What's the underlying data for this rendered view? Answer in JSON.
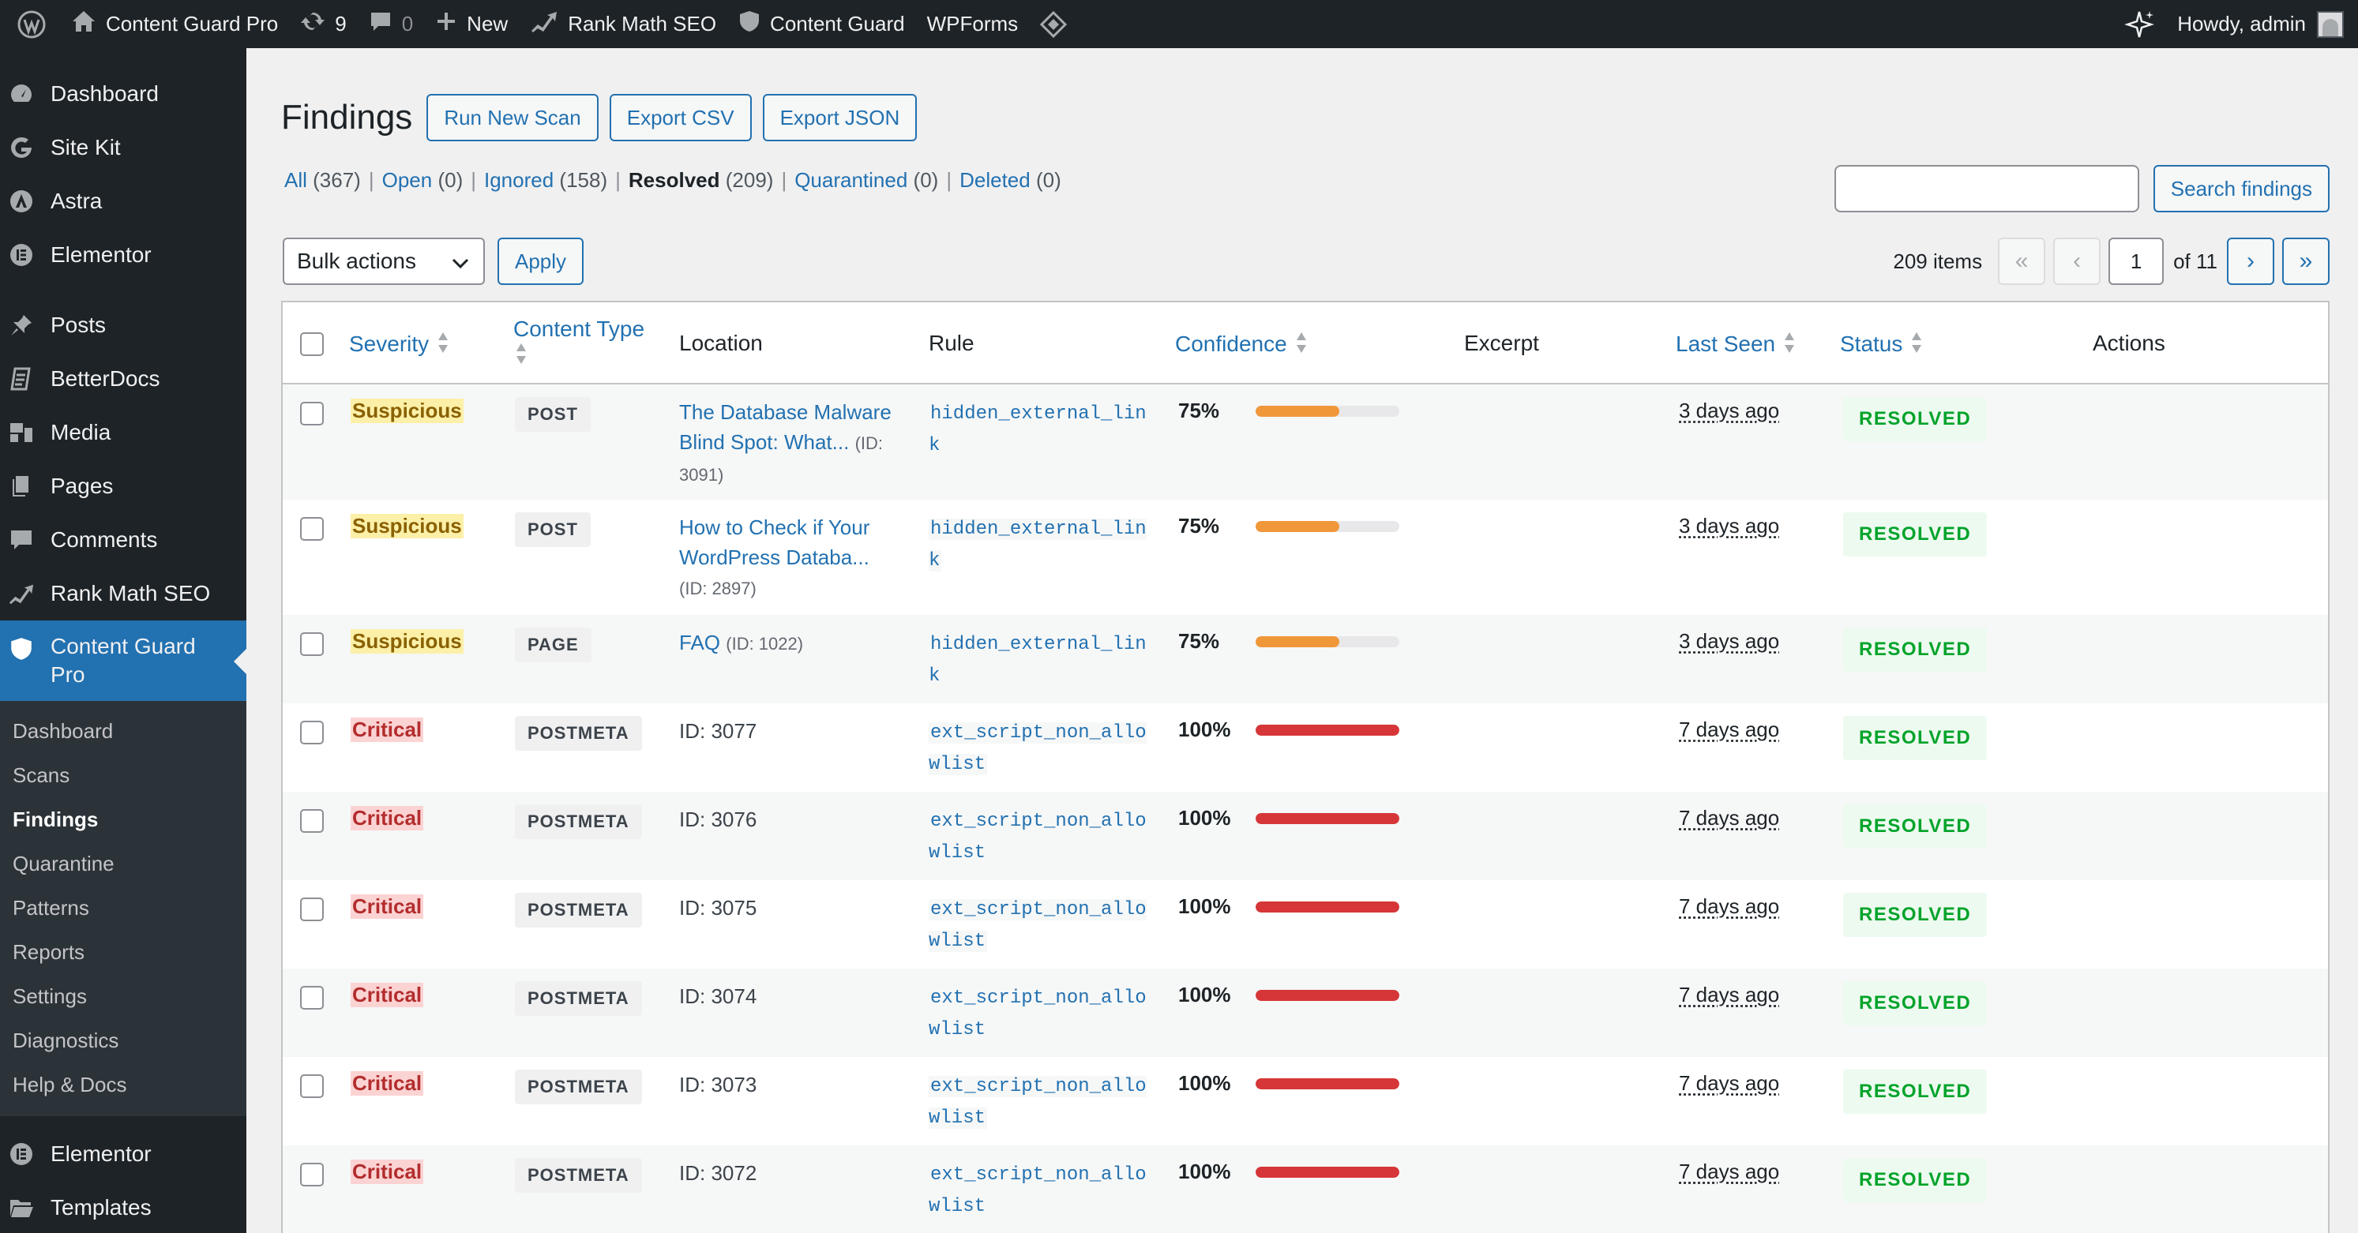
{
  "adminbar": {
    "site_name": "Content Guard Pro",
    "updates_count": "9",
    "comments_count": "0",
    "new_label": "New",
    "rankmath_label": "Rank Math SEO",
    "contentguard_label": "Content Guard",
    "wpforms_label": "WPForms",
    "howdy": "Howdy, admin"
  },
  "sidebar": {
    "items": [
      {
        "label": "Dashboard",
        "icon": "dashboard-icon"
      },
      {
        "label": "Site Kit",
        "icon": "sitekit-icon"
      },
      {
        "label": "Astra",
        "icon": "astra-icon"
      },
      {
        "label": "Elementor",
        "icon": "elementor-icon"
      },
      {
        "label": "Posts",
        "icon": "pin-icon"
      },
      {
        "label": "BetterDocs",
        "icon": "docs-icon"
      },
      {
        "label": "Media",
        "icon": "media-icon"
      },
      {
        "label": "Pages",
        "icon": "pages-icon"
      },
      {
        "label": "Comments",
        "icon": "comments-icon"
      },
      {
        "label": "Rank Math SEO",
        "icon": "rankmath-icon"
      },
      {
        "label": "Content Guard Pro",
        "icon": "shield-icon"
      }
    ],
    "submenu": [
      "Dashboard",
      "Scans",
      "Findings",
      "Quarantine",
      "Patterns",
      "Reports",
      "Settings",
      "Diagnostics",
      "Help & Docs"
    ],
    "after": [
      {
        "label": "Elementor",
        "icon": "elementor-icon"
      },
      {
        "label": "Templates",
        "icon": "folder-icon"
      }
    ]
  },
  "page": {
    "title": "Findings",
    "buttons": {
      "scan": "Run New Scan",
      "csv": "Export CSV",
      "json": "Export JSON"
    },
    "filters": [
      {
        "label": "All",
        "count": "(367)"
      },
      {
        "label": "Open",
        "count": "(0)"
      },
      {
        "label": "Ignored",
        "count": "(158)"
      },
      {
        "label": "Resolved",
        "count": "(209)"
      },
      {
        "label": "Quarantined",
        "count": "(0)"
      },
      {
        "label": "Deleted",
        "count": "(0)"
      }
    ],
    "search_button": "Search findings",
    "bulk_label": "Bulk actions",
    "apply_label": "Apply",
    "items_count": "209 items",
    "current_page": "1",
    "of_pages": "of 11",
    "pager": {
      "first": "«",
      "prev": "‹",
      "next": "›",
      "last": "»"
    }
  },
  "table": {
    "headers": {
      "severity": "Severity",
      "content_type": "Content Type",
      "location": "Location",
      "rule": "Rule",
      "confidence": "Confidence",
      "excerpt": "Excerpt",
      "last_seen": "Last Seen",
      "status": "Status",
      "actions": "Actions"
    },
    "rows": [
      {
        "severity": "Suspicious",
        "type": "POST",
        "loc_l1": "The Database Malware",
        "loc_l2": "Blind Spot: What...",
        "loc_id": "(ID:",
        "loc_id2": "3091)",
        "rule": "hidden_external_link",
        "confidence": "75%",
        "conf_value": 75,
        "last_seen": "3 days ago",
        "status": "RESOLVED"
      },
      {
        "severity": "Suspicious",
        "type": "POST",
        "loc_l1": "How to Check if Your",
        "loc_l2": "WordPress Databa...",
        "loc_id": "",
        "loc_id2": "(ID: 2897)",
        "rule": "hidden_external_link",
        "confidence": "75%",
        "conf_value": 75,
        "last_seen": "3 days ago",
        "status": "RESOLVED"
      },
      {
        "severity": "Suspicious",
        "type": "PAGE",
        "loc_l1": "FAQ",
        "loc_l2": "",
        "loc_id": "(ID: 1022)",
        "loc_id2": "",
        "rule": "hidden_external_link",
        "confidence": "75%",
        "conf_value": 75,
        "last_seen": "3 days ago",
        "status": "RESOLVED"
      },
      {
        "severity": "Critical",
        "type": "POSTMETA",
        "loc_plain": "ID: 3077",
        "rule": "ext_script_non_allowlist",
        "confidence": "100%",
        "conf_value": 100,
        "last_seen": "7 days ago",
        "status": "RESOLVED"
      },
      {
        "severity": "Critical",
        "type": "POSTMETA",
        "loc_plain": "ID: 3076",
        "rule": "ext_script_non_allowlist",
        "confidence": "100%",
        "conf_value": 100,
        "last_seen": "7 days ago",
        "status": "RESOLVED"
      },
      {
        "severity": "Critical",
        "type": "POSTMETA",
        "loc_plain": "ID: 3075",
        "rule": "ext_script_non_allowlist",
        "confidence": "100%",
        "conf_value": 100,
        "last_seen": "7 days ago",
        "status": "RESOLVED"
      },
      {
        "severity": "Critical",
        "type": "POSTMETA",
        "loc_plain": "ID: 3074",
        "rule": "ext_script_non_allowlist",
        "confidence": "100%",
        "conf_value": 100,
        "last_seen": "7 days ago",
        "status": "RESOLVED"
      },
      {
        "severity": "Critical",
        "type": "POSTMETA",
        "loc_plain": "ID: 3073",
        "rule": "ext_script_non_allowlist",
        "confidence": "100%",
        "conf_value": 100,
        "last_seen": "7 days ago",
        "status": "RESOLVED"
      },
      {
        "severity": "Critical",
        "type": "POSTMETA",
        "loc_plain": "ID: 3072",
        "rule": "ext_script_non_allowlist",
        "confidence": "100%",
        "conf_value": 100,
        "last_seen": "7 days ago",
        "status": "RESOLVED"
      }
    ]
  },
  "colors": {
    "accent": "#2271b1",
    "bar_suspicious": "#f0973a",
    "bar_critical": "#d63638",
    "resolved": "#00a32a"
  }
}
